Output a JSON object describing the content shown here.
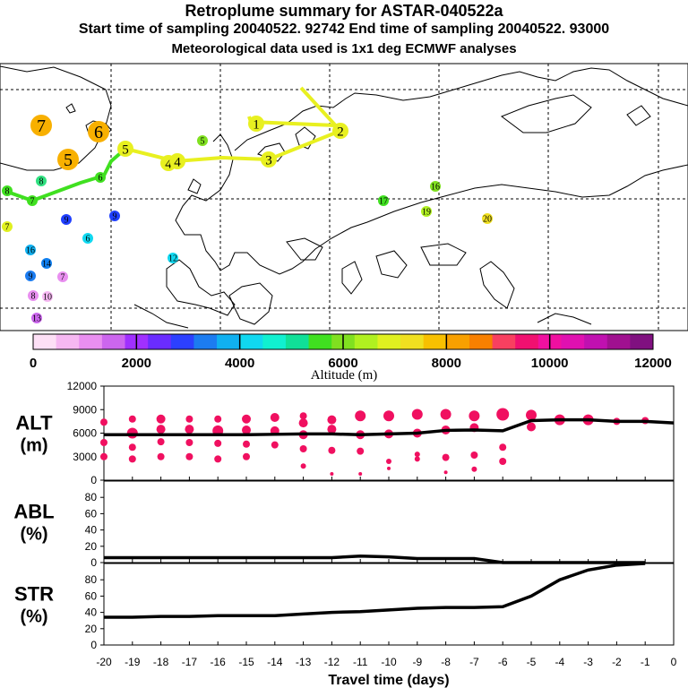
{
  "header": {
    "title": "Retroplume summary for ASTAR-040522a",
    "sampling_line": "Start time of sampling 20040522. 92742     End time of sampling 20040522. 93000",
    "met_line": "Meteorological data used is 1x1 deg ECMWF analyses"
  },
  "colors": {
    "scale": [
      "#fde0f6",
      "#f6b8f2",
      "#e98ff0",
      "#cc66ee",
      "#a030ff",
      "#6a2cff",
      "#2c40ff",
      "#1c7cf0",
      "#10b0f0",
      "#10d8f0",
      "#10f0d0",
      "#10e098",
      "#40e020",
      "#80e020",
      "#b0f020",
      "#e0f020",
      "#f0e020",
      "#f8c000",
      "#f8a000",
      "#f88000",
      "#f84060",
      "#f01070",
      "#f010a0",
      "#e010b0",
      "#c010b0",
      "#a01090",
      "#801080"
    ],
    "alt_dots": "#f01060",
    "traj_green": "#40e020",
    "traj_yellow": "#e8f020"
  },
  "colorbar": {
    "ticks": [
      "0",
      "2000",
      "4000",
      "6000",
      "8000",
      "10000",
      "12000"
    ],
    "label": "Altitude (m)"
  },
  "map_labels": [
    {
      "text": "7",
      "size": "big",
      "color": "#f8b000"
    },
    {
      "text": "6",
      "size": "big",
      "color": "#f8b000"
    },
    {
      "text": "5",
      "size": "big",
      "color": "#f8b000"
    },
    {
      "text": "5",
      "size": "med",
      "color": "#e8f020"
    },
    {
      "text": "4",
      "size": "med",
      "color": "#e8f020"
    },
    {
      "text": "4",
      "size": "med",
      "color": "#e8f020"
    },
    {
      "text": "3",
      "size": "med",
      "color": "#e8f020"
    },
    {
      "text": "1",
      "size": "med",
      "color": "#e8f020"
    },
    {
      "text": "2",
      "size": "med",
      "color": "#e8f020"
    },
    {
      "text": "5",
      "size": "small",
      "color": "#80e020"
    },
    {
      "text": "8",
      "size": "small",
      "color": "#30e080"
    },
    {
      "text": "6",
      "size": "small",
      "color": "#40e020"
    },
    {
      "text": "8",
      "size": "small",
      "color": "#40e020"
    },
    {
      "text": "7",
      "size": "small",
      "color": "#40e020"
    },
    {
      "text": "9",
      "size": "small",
      "color": "#2040ff"
    },
    {
      "text": "9",
      "size": "small",
      "color": "#2040ff"
    },
    {
      "text": "6",
      "size": "small",
      "color": "#10d8f0"
    },
    {
      "text": "16",
      "size": "small",
      "color": "#10b0f0"
    },
    {
      "text": "14",
      "size": "small",
      "color": "#1080f0"
    },
    {
      "text": "9",
      "size": "small",
      "color": "#1c7cf0"
    },
    {
      "text": "7",
      "size": "small",
      "color": "#e98ff0"
    },
    {
      "text": "8",
      "size": "small",
      "color": "#e98ff0"
    },
    {
      "text": "10",
      "size": "small",
      "color": "#f6b8f2"
    },
    {
      "text": "13",
      "size": "small",
      "color": "#cc66ee"
    },
    {
      "text": "7",
      "size": "small",
      "color": "#e0f020"
    },
    {
      "text": "12",
      "size": "small",
      "color": "#10d8f0"
    },
    {
      "text": "16",
      "size": "small",
      "color": "#80e020"
    },
    {
      "text": "17",
      "size": "small",
      "color": "#40e020"
    },
    {
      "text": "19",
      "size": "small",
      "color": "#b0f020"
    },
    {
      "text": "20",
      "size": "small",
      "color": "#f0e020"
    }
  ],
  "chart_data": [
    {
      "type": "scatter",
      "name": "ALT",
      "ylabel_line1": "ALT",
      "ylabel_line2": "(m)",
      "ylim": [
        0,
        12000
      ],
      "yticks": [
        "12000",
        "9000",
        "6000",
        "3000",
        "0"
      ],
      "mean_line": [
        [
          -20,
          5800
        ],
        [
          -19,
          5800
        ],
        [
          -18,
          5800
        ],
        [
          -17,
          5800
        ],
        [
          -16,
          5800
        ],
        [
          -15,
          5800
        ],
        [
          -14,
          5850
        ],
        [
          -13,
          5900
        ],
        [
          -12,
          5900
        ],
        [
          -11,
          5800
        ],
        [
          -10,
          5900
        ],
        [
          -9,
          6000
        ],
        [
          -8,
          6350
        ],
        [
          -7,
          6400
        ],
        [
          -6,
          6300
        ],
        [
          -5,
          7600
        ],
        [
          -4,
          7700
        ],
        [
          -3,
          7700
        ],
        [
          -2,
          7500
        ],
        [
          -1,
          7500
        ],
        [
          0,
          7300
        ]
      ],
      "points": [
        [
          -20,
          7400,
          4
        ],
        [
          -20,
          4800,
          4
        ],
        [
          -20,
          3000,
          4
        ],
        [
          -19,
          7800,
          4
        ],
        [
          -19,
          6000,
          6
        ],
        [
          -19,
          4200,
          4
        ],
        [
          -19,
          2700,
          4
        ],
        [
          -18,
          7800,
          5
        ],
        [
          -18,
          6500,
          5
        ],
        [
          -18,
          4900,
          4
        ],
        [
          -18,
          3000,
          4
        ],
        [
          -17,
          7800,
          4
        ],
        [
          -17,
          6500,
          5
        ],
        [
          -17,
          4800,
          4
        ],
        [
          -17,
          3000,
          4
        ],
        [
          -16,
          7800,
          4
        ],
        [
          -16,
          6300,
          6
        ],
        [
          -16,
          4700,
          4
        ],
        [
          -16,
          2700,
          4
        ],
        [
          -15,
          7800,
          5
        ],
        [
          -15,
          6400,
          5
        ],
        [
          -15,
          4600,
          4
        ],
        [
          -15,
          3000,
          4
        ],
        [
          -14,
          8000,
          5
        ],
        [
          -14,
          6300,
          5
        ],
        [
          -14,
          4500,
          4
        ],
        [
          -13,
          8200,
          4
        ],
        [
          -13,
          7300,
          5
        ],
        [
          -13,
          5800,
          5
        ],
        [
          -13,
          4000,
          4
        ],
        [
          -13,
          1800,
          3
        ],
        [
          -12,
          7700,
          5
        ],
        [
          -12,
          6500,
          5
        ],
        [
          -12,
          3800,
          4
        ],
        [
          -12,
          800,
          2
        ],
        [
          -11,
          8200,
          6
        ],
        [
          -11,
          5800,
          5
        ],
        [
          -11,
          3700,
          4
        ],
        [
          -11,
          800,
          2
        ],
        [
          -10,
          8200,
          6
        ],
        [
          -10,
          5900,
          5
        ],
        [
          -10,
          2400,
          3
        ],
        [
          -10,
          1500,
          2
        ],
        [
          -9,
          8400,
          6
        ],
        [
          -9,
          6000,
          5
        ],
        [
          -9,
          3300,
          3
        ],
        [
          -9,
          2700,
          3
        ],
        [
          -8,
          8400,
          6
        ],
        [
          -8,
          6400,
          5
        ],
        [
          -8,
          2900,
          4
        ],
        [
          -8,
          1000,
          2
        ],
        [
          -7,
          8200,
          6
        ],
        [
          -7,
          6700,
          5
        ],
        [
          -7,
          3200,
          4
        ],
        [
          -7,
          1400,
          3
        ],
        [
          -6,
          8400,
          7
        ],
        [
          -6,
          4200,
          4
        ],
        [
          -6,
          2400,
          4
        ],
        [
          -5,
          8300,
          6
        ],
        [
          -5,
          6800,
          5
        ],
        [
          -4,
          7700,
          6
        ],
        [
          -3,
          7700,
          6
        ],
        [
          -2,
          7500,
          4
        ],
        [
          -1,
          7600,
          4
        ]
      ]
    },
    {
      "type": "line",
      "name": "ABL",
      "ylabel_line1": "ABL",
      "ylabel_line2": "(%)",
      "ylim": [
        0,
        100
      ],
      "yticks": [
        "80",
        "60",
        "40",
        "20",
        "0"
      ],
      "x": [
        -20,
        -19,
        -18,
        -17,
        -16,
        -15,
        -14,
        -13,
        -12,
        -11,
        -10,
        -9,
        -8,
        -7,
        -6,
        -5,
        -4,
        -3,
        -2,
        -1
      ],
      "values": [
        6,
        6,
        6,
        6,
        6,
        6,
        6,
        6,
        6,
        8,
        7,
        5,
        5,
        5,
        0,
        0,
        0,
        0,
        0,
        0
      ]
    },
    {
      "type": "line",
      "name": "STR",
      "ylabel_line1": "STR",
      "ylabel_line2": "(%)",
      "ylim": [
        0,
        100
      ],
      "yticks": [
        "80",
        "60",
        "40",
        "20",
        "0"
      ],
      "x": [
        -20,
        -19,
        -18,
        -17,
        -16,
        -15,
        -14,
        -13,
        -12,
        -11,
        -10,
        -9,
        -8,
        -7,
        -6,
        -5,
        -4,
        -3,
        -2,
        -1
      ],
      "values": [
        34,
        34,
        35,
        35,
        36,
        36,
        36,
        38,
        40,
        41,
        43,
        45,
        46,
        46,
        47,
        60,
        80,
        92,
        98,
        100
      ],
      "xlim": [
        -20,
        0
      ],
      "xticks": [
        "-20",
        "-19",
        "-18",
        "-17",
        "-16",
        "-15",
        "-14",
        "-13",
        "-12",
        "-11",
        "-10",
        "-9",
        "-8",
        "-7",
        "-6",
        "-5",
        "-4",
        "-3",
        "-2",
        "-1",
        "0"
      ],
      "xlabel": "Travel time (days)"
    }
  ]
}
